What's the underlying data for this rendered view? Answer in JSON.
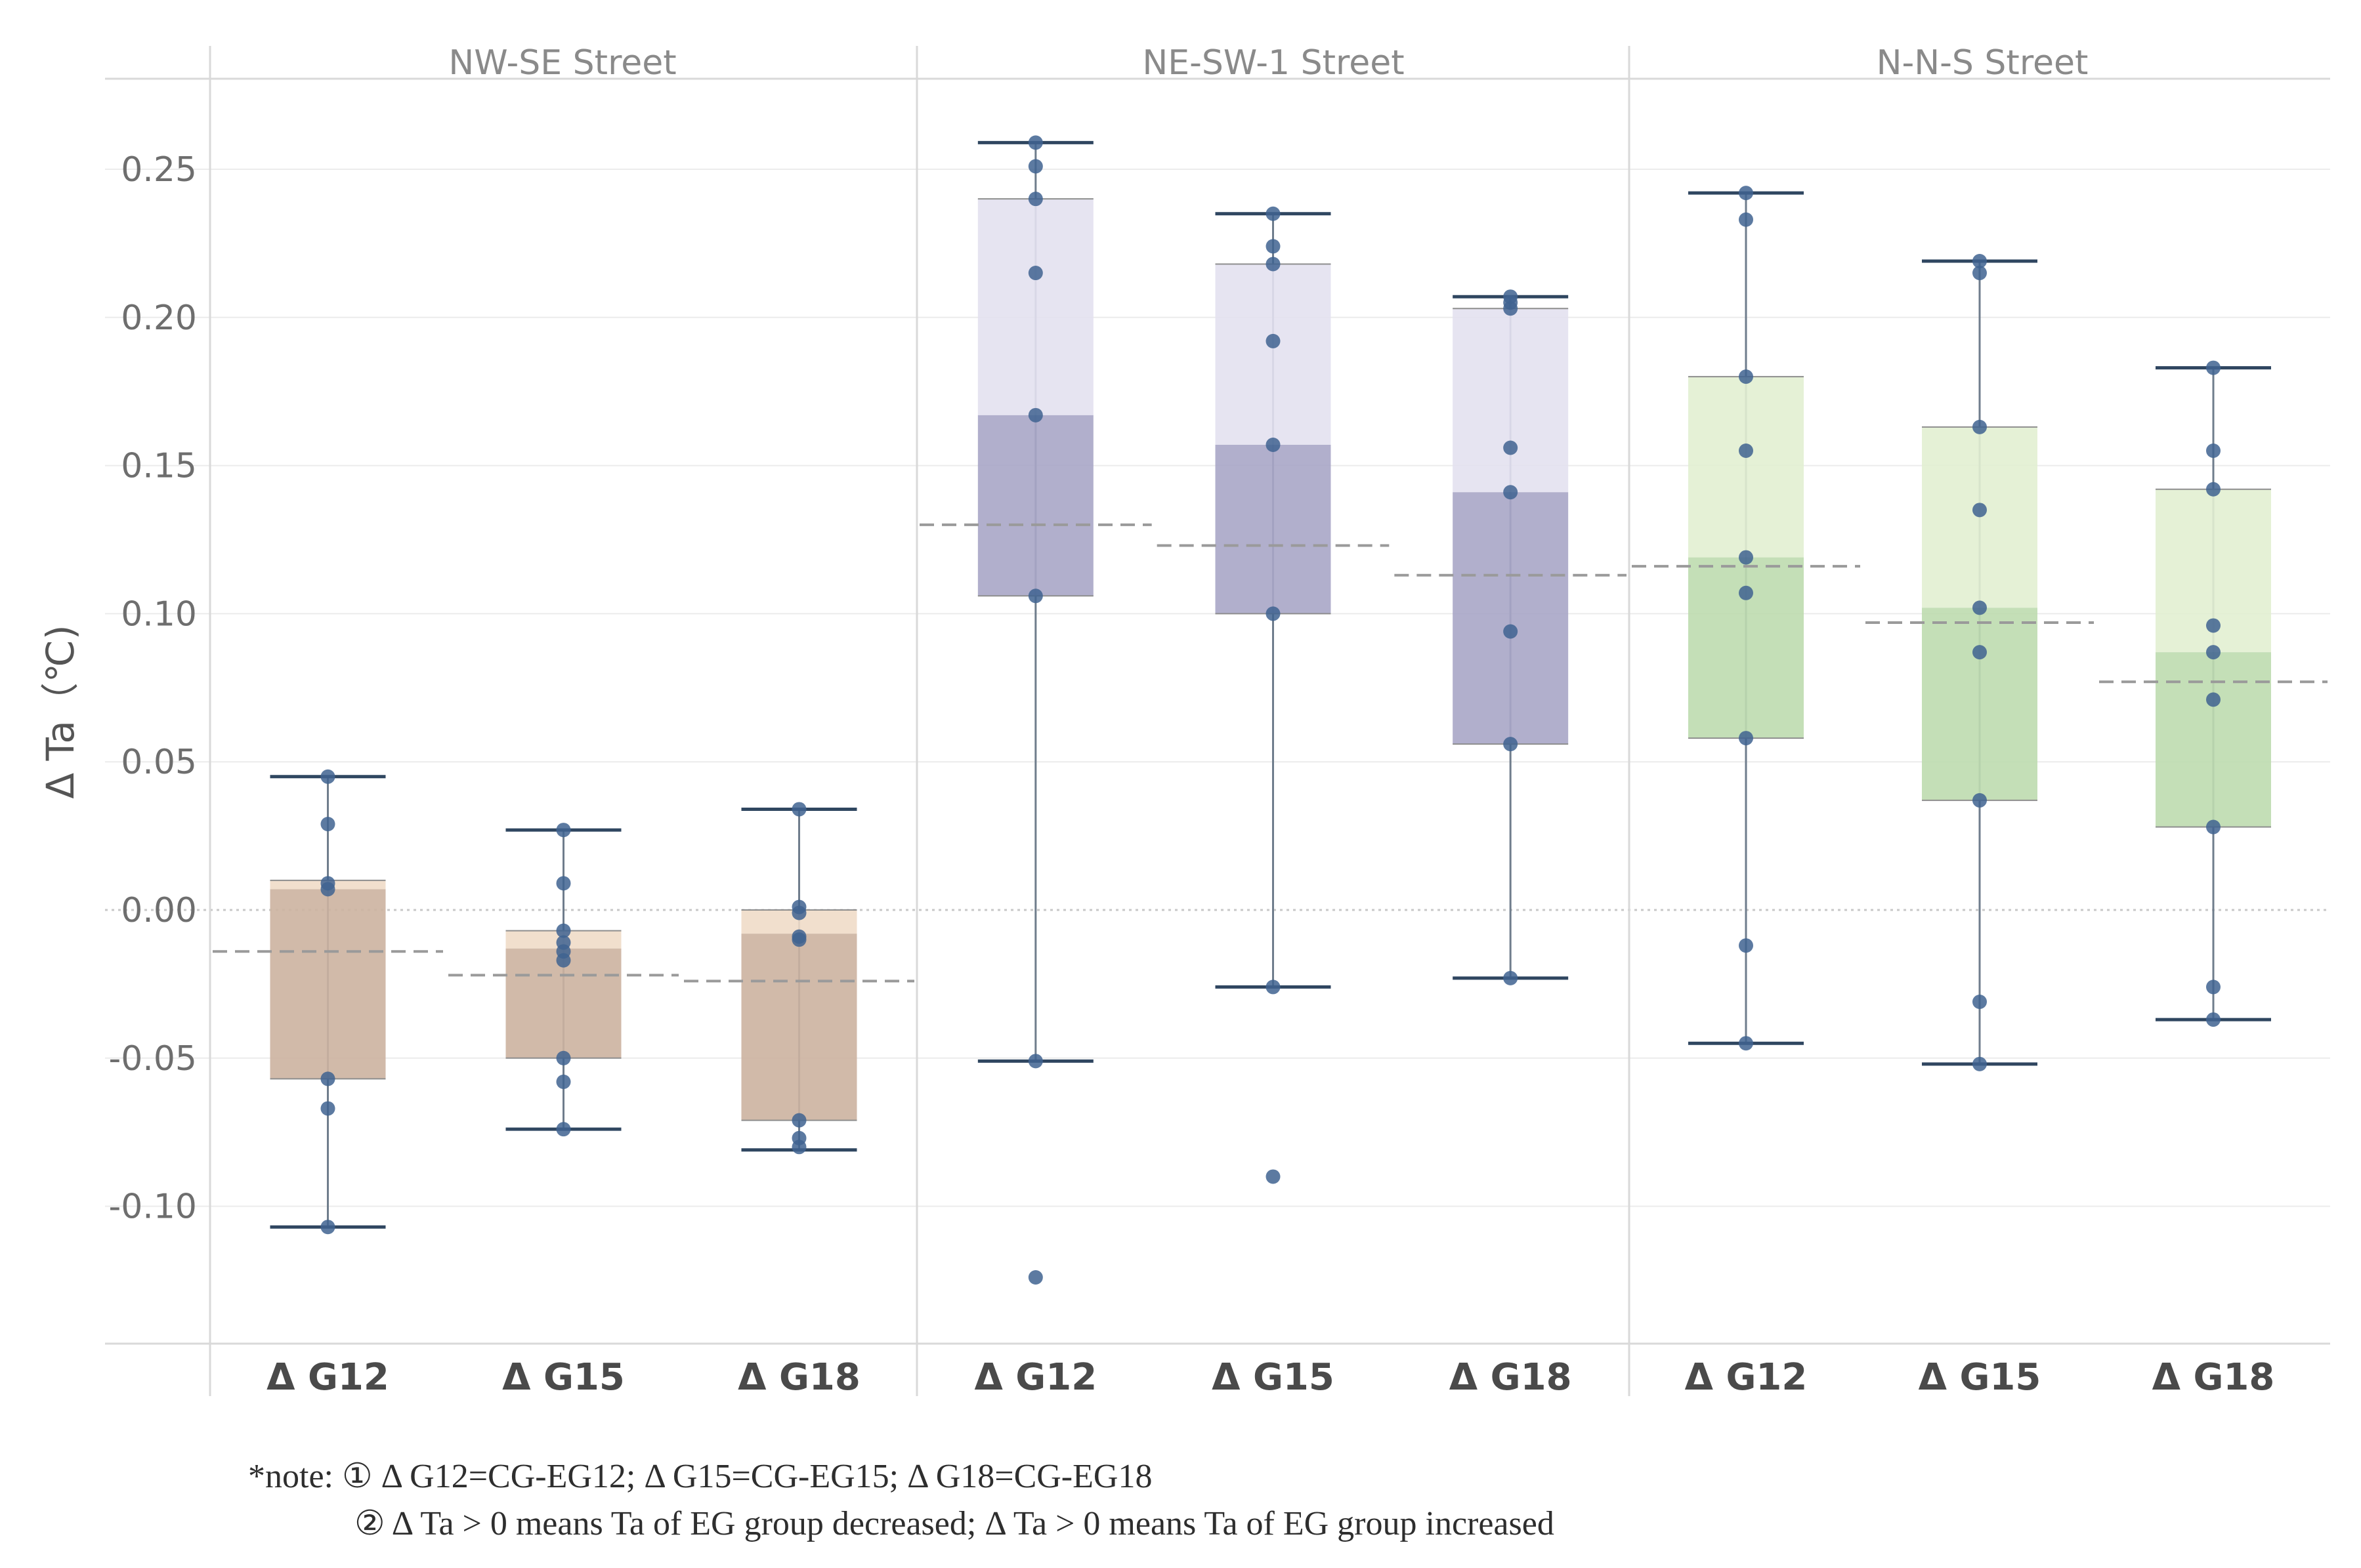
{
  "chart_data": {
    "type": "box",
    "ylabel": "Δ Ta（℃)",
    "ylim": [
      -0.145,
      0.285
    ],
    "yticks": [
      0.25,
      0.2,
      0.15,
      0.1,
      0.05,
      0.0,
      -0.05,
      -0.1
    ],
    "ytick_labels": [
      "0.25",
      "0.20",
      "0.15",
      "0.10",
      "0.05",
      "0.00",
      "-0.05",
      "-0.10"
    ],
    "reference_line": 0.0,
    "panels": [
      {
        "title": "NW-SE Street",
        "color_light": "#efdcc8",
        "color_dark": "#ccb3a0",
        "boxes": [
          {
            "label": "Δ G12",
            "whisker_low": -0.107,
            "q1": -0.057,
            "median": 0.007,
            "q3": 0.01,
            "whisker_high": 0.045,
            "mean": -0.014,
            "points": [
              0.045,
              0.029,
              0.009,
              0.007,
              -0.057,
              -0.067,
              -0.107
            ]
          },
          {
            "label": "Δ G15",
            "whisker_low": -0.074,
            "q1": -0.05,
            "median": -0.013,
            "q3": -0.007,
            "whisker_high": 0.027,
            "mean": -0.022,
            "points": [
              0.027,
              0.009,
              -0.007,
              -0.011,
              -0.014,
              -0.017,
              -0.05,
              -0.058,
              -0.074
            ]
          },
          {
            "label": "Δ G18",
            "whisker_low": -0.081,
            "q1": -0.071,
            "median": -0.008,
            "q3": 0.0,
            "whisker_high": 0.034,
            "mean": -0.024,
            "points": [
              0.034,
              0.001,
              -0.001,
              -0.009,
              -0.01,
              -0.071,
              -0.077,
              -0.08
            ]
          }
        ]
      },
      {
        "title": "NE-SW-1 Street",
        "color_light": "#e3e1ef",
        "color_dark": "#a9a6c6",
        "boxes": [
          {
            "label": "Δ G12",
            "whisker_low": -0.051,
            "q1": 0.106,
            "median": 0.167,
            "q3": 0.24,
            "whisker_high": 0.259,
            "mean": 0.13,
            "points": [
              0.259,
              0.251,
              0.24,
              0.215,
              0.167,
              0.106,
              -0.051,
              -0.124
            ]
          },
          {
            "label": "Δ G15",
            "whisker_low": -0.026,
            "q1": 0.1,
            "median": 0.157,
            "q3": 0.218,
            "whisker_high": 0.235,
            "mean": 0.123,
            "points": [
              0.235,
              0.224,
              0.218,
              0.192,
              0.157,
              0.1,
              -0.026,
              -0.09
            ]
          },
          {
            "label": "Δ G18",
            "whisker_low": -0.023,
            "q1": 0.056,
            "median": 0.141,
            "q3": 0.203,
            "whisker_high": 0.207,
            "mean": 0.113,
            "points": [
              0.207,
              0.205,
              0.203,
              0.156,
              0.141,
              0.094,
              0.056,
              -0.023
            ]
          }
        ]
      },
      {
        "title": "N-N-S Street",
        "color_light": "#e2f0d2",
        "color_dark": "#bedcaf",
        "boxes": [
          {
            "label": "Δ G12",
            "whisker_low": -0.045,
            "q1": 0.058,
            "median": 0.119,
            "q3": 0.18,
            "whisker_high": 0.242,
            "mean": 0.116,
            "points": [
              0.242,
              0.233,
              0.18,
              0.155,
              0.119,
              0.107,
              0.058,
              -0.012,
              -0.045
            ]
          },
          {
            "label": "Δ G15",
            "whisker_low": -0.052,
            "q1": 0.037,
            "median": 0.102,
            "q3": 0.163,
            "whisker_high": 0.219,
            "mean": 0.097,
            "points": [
              0.219,
              0.215,
              0.163,
              0.135,
              0.102,
              0.087,
              0.037,
              -0.031,
              -0.052
            ]
          },
          {
            "label": "Δ G18",
            "whisker_low": -0.037,
            "q1": 0.028,
            "median": 0.087,
            "q3": 0.142,
            "whisker_high": 0.183,
            "mean": 0.077,
            "points": [
              0.183,
              0.155,
              0.142,
              0.096,
              0.087,
              0.071,
              0.028,
              -0.026,
              -0.037
            ]
          }
        ]
      }
    ]
  },
  "notes": {
    "line1": "*note: ① Δ G12=CG-EG12; Δ G15=CG-EG15; Δ G18=CG-EG18",
    "line2": "② Δ Ta > 0 means Ta of EG group decreased; Δ Ta > 0 means Ta of EG group increased"
  },
  "colors": {
    "point": "#3f6391",
    "whisker": "#2f4660",
    "mean_line": "#9a9a9a",
    "grid": "#ececec",
    "divider": "#d9d9d9"
  }
}
